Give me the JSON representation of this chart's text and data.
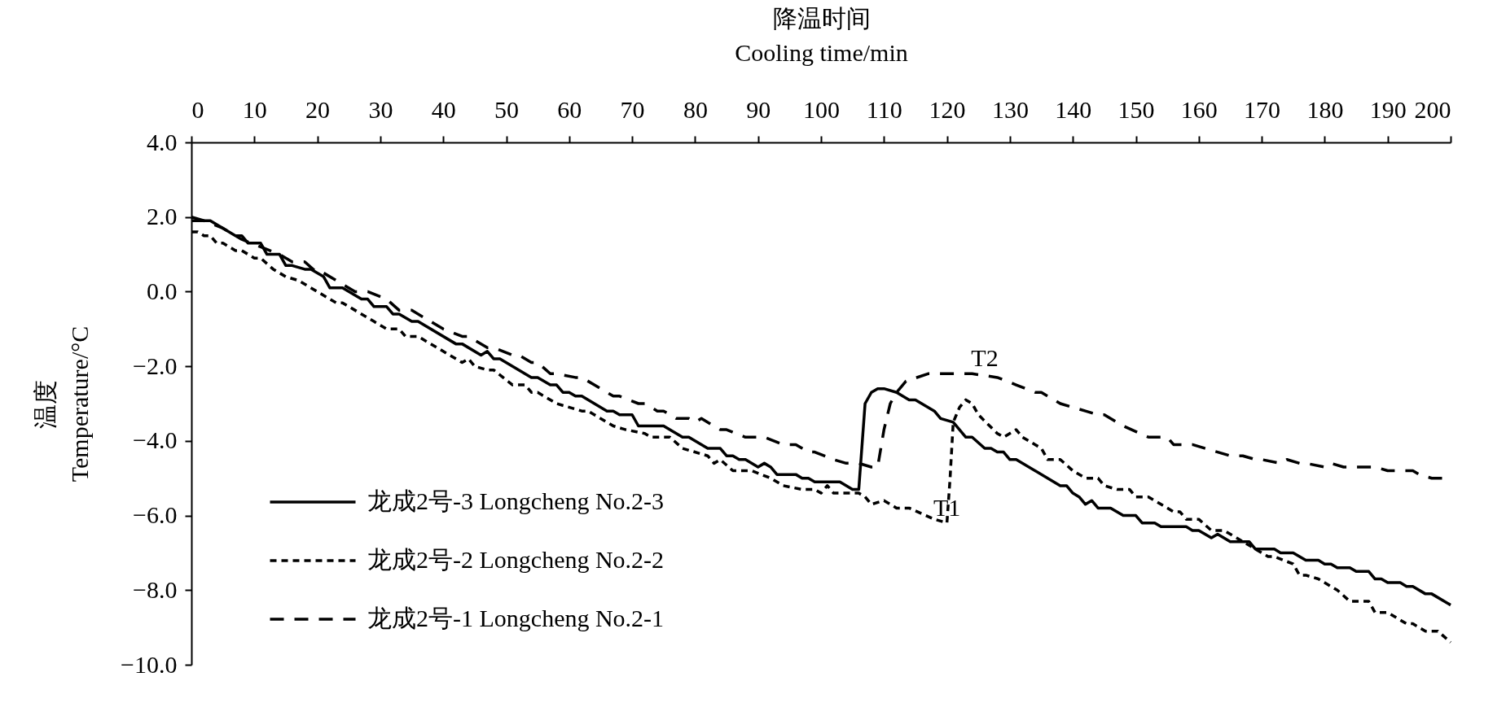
{
  "chart_data": {
    "type": "line",
    "xlabel": "降温时间\nCooling time/min",
    "ylabel": "温度\nTemperature/°C",
    "xlim": [
      0,
      200
    ],
    "xticks": [
      0,
      10,
      20,
      30,
      40,
      50,
      60,
      70,
      80,
      90,
      100,
      110,
      120,
      130,
      140,
      150,
      160,
      170,
      180,
      190,
      200
    ],
    "ylim": [
      -10,
      4
    ],
    "yticks": [
      {
        "value": 4,
        "label": "4.0"
      },
      {
        "value": 2,
        "label": "2.0"
      },
      {
        "value": 0,
        "label": "0.0"
      },
      {
        "value": -2,
        "label": "−2.0"
      },
      {
        "value": -4,
        "label": "−4.0"
      },
      {
        "value": -6,
        "label": "−6.0"
      },
      {
        "value": -8,
        "label": "−8.0"
      },
      {
        "value": -10,
        "label": "−10.0"
      }
    ],
    "legend": "bottom left",
    "annotations": [
      {
        "text": "T1",
        "x": 120,
        "y": -6.2
      },
      {
        "text": "T2",
        "x": 126,
        "y": -2.2
      }
    ],
    "series": [
      {
        "name": "龙成2号-3 Longcheng No.2-3",
        "color": "#000000",
        "line_style": "solid",
        "x": [
          0,
          3,
          7,
          8,
          9,
          11,
          12,
          14,
          15,
          16,
          18,
          19,
          21,
          22,
          24,
          27,
          28,
          29,
          31,
          32,
          33,
          35,
          36,
          42,
          43,
          46,
          47,
          48,
          49,
          54,
          55,
          57,
          58,
          59,
          60,
          61,
          62,
          66,
          67,
          68,
          70,
          71,
          75,
          78,
          79,
          82,
          84,
          85,
          86,
          87,
          88,
          90,
          91,
          92,
          93,
          96,
          97,
          98,
          99,
          103,
          105,
          106,
          107,
          108,
          109,
          110,
          112,
          114,
          115,
          118,
          119,
          121,
          123,
          124,
          126,
          127,
          128,
          129,
          130,
          131,
          136,
          138,
          139,
          140,
          141,
          142,
          143,
          144,
          146,
          148,
          150,
          151,
          153,
          154,
          158,
          159,
          160,
          162,
          163,
          165,
          168,
          169,
          172,
          173,
          175,
          177,
          179,
          180,
          181,
          182,
          184,
          185,
          187,
          188,
          189,
          190,
          192,
          193,
          194,
          196,
          197,
          200
        ],
        "values": [
          1.9,
          1.9,
          1.5,
          1.5,
          1.3,
          1.3,
          1.0,
          1.0,
          0.7,
          0.7,
          0.6,
          0.6,
          0.4,
          0.1,
          0.1,
          -0.2,
          -0.2,
          -0.4,
          -0.4,
          -0.6,
          -0.6,
          -0.8,
          -0.8,
          -1.4,
          -1.4,
          -1.7,
          -1.6,
          -1.8,
          -1.8,
          -2.3,
          -2.3,
          -2.5,
          -2.5,
          -2.7,
          -2.7,
          -2.8,
          -2.8,
          -3.2,
          -3.2,
          -3.3,
          -3.3,
          -3.6,
          -3.6,
          -3.9,
          -3.9,
          -4.2,
          -4.2,
          -4.4,
          -4.4,
          -4.5,
          -4.5,
          -4.7,
          -4.6,
          -4.7,
          -4.9,
          -4.9,
          -5.0,
          -5.0,
          -5.1,
          -5.1,
          -5.3,
          -5.3,
          -3.0,
          -2.7,
          -2.6,
          -2.6,
          -2.7,
          -2.9,
          -2.9,
          -3.2,
          -3.4,
          -3.5,
          -3.9,
          -3.9,
          -4.2,
          -4.2,
          -4.3,
          -4.3,
          -4.5,
          -4.5,
          -5.0,
          -5.2,
          -5.2,
          -5.4,
          -5.5,
          -5.7,
          -5.6,
          -5.8,
          -5.8,
          -6.0,
          -6.0,
          -6.2,
          -6.2,
          -6.3,
          -6.3,
          -6.4,
          -6.4,
          -6.6,
          -6.5,
          -6.7,
          -6.7,
          -6.9,
          -6.9,
          -7.0,
          -7.0,
          -7.2,
          -7.2,
          -7.3,
          -7.3,
          -7.4,
          -7.4,
          -7.5,
          -7.5,
          -7.7,
          -7.7,
          -7.8,
          -7.8,
          -7.9,
          -7.9,
          -8.1,
          -8.1,
          -8.4
        ]
      },
      {
        "name": "龙成2号-2 Longcheng No.2-2",
        "color": "#000000",
        "line_style": "dotted",
        "x": [
          0,
          1,
          2,
          3,
          4,
          5,
          7,
          8,
          10,
          11,
          13,
          15,
          17,
          18,
          20,
          23,
          24,
          27,
          29,
          31,
          33,
          34,
          36,
          40,
          43,
          44,
          45,
          47,
          48,
          51,
          53,
          54,
          55,
          58,
          62,
          63,
          64,
          67,
          69,
          72,
          73,
          76,
          78,
          82,
          83,
          84,
          86,
          89,
          92,
          94,
          97,
          99,
          100,
          101,
          102,
          106,
          107,
          108,
          110,
          112,
          114,
          118,
          120,
          120.5,
          121,
          122,
          123,
          124,
          125,
          128,
          129,
          131,
          132,
          135,
          136,
          138,
          140,
          142,
          144,
          145,
          147,
          149,
          150,
          152,
          153,
          156,
          157,
          158,
          160,
          162,
          164,
          166,
          169,
          171,
          172,
          175,
          176,
          177,
          179,
          182,
          184,
          187,
          188,
          190,
          193,
          194,
          196,
          198,
          200
        ],
        "values": [
          1.6,
          1.6,
          1.5,
          1.5,
          1.3,
          1.3,
          1.1,
          1.1,
          0.9,
          0.9,
          0.6,
          0.4,
          0.3,
          0.2,
          0.0,
          -0.3,
          -0.3,
          -0.6,
          -0.8,
          -1.0,
          -1.0,
          -1.2,
          -1.2,
          -1.6,
          -1.9,
          -1.8,
          -2.0,
          -2.1,
          -2.1,
          -2.5,
          -2.5,
          -2.7,
          -2.7,
          -3.0,
          -3.2,
          -3.2,
          -3.3,
          -3.6,
          -3.7,
          -3.8,
          -3.9,
          -3.9,
          -4.2,
          -4.4,
          -4.6,
          -4.5,
          -4.8,
          -4.8,
          -5.0,
          -5.2,
          -5.3,
          -5.3,
          -5.4,
          -5.2,
          -5.4,
          -5.4,
          -5.5,
          -5.7,
          -5.6,
          -5.8,
          -5.8,
          -6.1,
          -6.2,
          -5.0,
          -3.5,
          -3.1,
          -2.9,
          -3.0,
          -3.3,
          -3.8,
          -3.9,
          -3.7,
          -3.9,
          -4.2,
          -4.5,
          -4.5,
          -4.8,
          -5.0,
          -5.0,
          -5.2,
          -5.3,
          -5.3,
          -5.5,
          -5.5,
          -5.6,
          -5.9,
          -5.9,
          -6.1,
          -6.1,
          -6.4,
          -6.4,
          -6.6,
          -6.9,
          -7.1,
          -7.1,
          -7.3,
          -7.6,
          -7.6,
          -7.7,
          -8.0,
          -8.3,
          -8.3,
          -8.6,
          -8.6,
          -8.9,
          -8.9,
          -9.1,
          -9.1,
          -9.4
        ]
      },
      {
        "name": "龙成2号-1 Longcheng No.2-1",
        "color": "#000000",
        "line_style": "dashed",
        "x": [
          0,
          2,
          5,
          8,
          11,
          14,
          16,
          18,
          20,
          21,
          23,
          26,
          28,
          31,
          33,
          35,
          37,
          40,
          43,
          44,
          47,
          48,
          51,
          52,
          54,
          55,
          57,
          58,
          61,
          62,
          64,
          67,
          68,
          71,
          72,
          74,
          75,
          77,
          79,
          80,
          81,
          84,
          85,
          88,
          91,
          94,
          96,
          98,
          99,
          102,
          104,
          106,
          108,
          109,
          110,
          111,
          112,
          113.5,
          117,
          122,
          124,
          128,
          131,
          134,
          135,
          138,
          142,
          144,
          145,
          148,
          152,
          155,
          156,
          159,
          163,
          165,
          167,
          169,
          170,
          173,
          174,
          176,
          177,
          180,
          181,
          183,
          188,
          190,
          194,
          195,
          197,
          199
        ],
        "values": [
          2.0,
          1.9,
          1.7,
          1.4,
          1.2,
          1.0,
          0.8,
          0.8,
          0.5,
          0.5,
          0.3,
          0.0,
          0.0,
          -0.2,
          -0.5,
          -0.5,
          -0.7,
          -1.0,
          -1.2,
          -1.2,
          -1.5,
          -1.5,
          -1.7,
          -1.7,
          -1.9,
          -1.9,
          -2.2,
          -2.2,
          -2.3,
          -2.3,
          -2.5,
          -2.8,
          -2.8,
          -3.0,
          -3.0,
          -3.2,
          -3.2,
          -3.4,
          -3.4,
          -3.5,
          -3.4,
          -3.7,
          -3.7,
          -3.9,
          -3.9,
          -4.1,
          -4.1,
          -4.3,
          -4.3,
          -4.5,
          -4.6,
          -4.6,
          -4.7,
          -4.7,
          -3.7,
          -3.0,
          -2.7,
          -2.4,
          -2.2,
          -2.2,
          -2.2,
          -2.3,
          -2.5,
          -2.7,
          -2.7,
          -3.0,
          -3.2,
          -3.3,
          -3.3,
          -3.6,
          -3.9,
          -3.9,
          -4.1,
          -4.1,
          -4.3,
          -4.4,
          -4.4,
          -4.5,
          -4.5,
          -4.6,
          -4.5,
          -4.6,
          -4.6,
          -4.7,
          -4.6,
          -4.7,
          -4.7,
          -4.8,
          -4.8,
          -4.9,
          -5.0,
          -5.0
        ]
      }
    ]
  }
}
